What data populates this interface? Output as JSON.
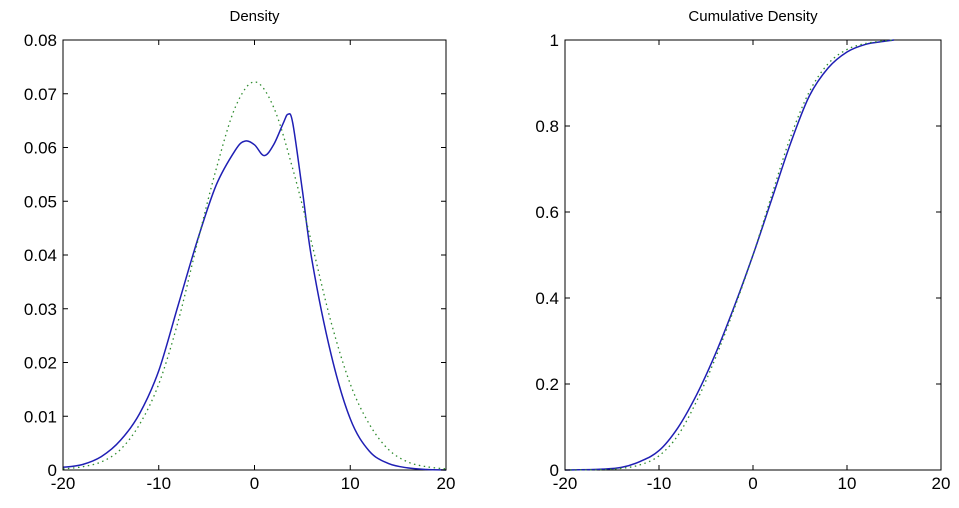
{
  "chart_data": [
    {
      "type": "line",
      "title": "Density",
      "xlabel": "",
      "ylabel": "",
      "xlim": [
        -20,
        20
      ],
      "ylim": [
        0,
        0.08
      ],
      "xticks": [
        "-20",
        "-10",
        "0",
        "10",
        "20"
      ],
      "yticks": [
        "0",
        "0.01",
        "0.02",
        "0.03",
        "0.04",
        "0.05",
        "0.06",
        "0.07",
        "0.08"
      ],
      "grid": false,
      "series": [
        {
          "style": "solid",
          "color": "#1f1fb4",
          "x": [
            -20,
            -18,
            -16,
            -14,
            -12,
            -10,
            -8,
            -6,
            -4,
            -2,
            -1,
            0,
            1,
            2,
            3,
            3.5,
            4,
            5,
            6,
            8,
            10,
            12,
            14,
            16,
            18,
            20
          ],
          "y": [
            0.0005,
            0.001,
            0.0025,
            0.0055,
            0.0105,
            0.0185,
            0.0305,
            0.0425,
            0.053,
            0.0595,
            0.0612,
            0.0605,
            0.0585,
            0.0605,
            0.0645,
            0.0662,
            0.0645,
            0.052,
            0.039,
            0.0215,
            0.0095,
            0.0035,
            0.0012,
            0.0004,
            0.0001,
            0.0
          ]
        },
        {
          "style": "dotted",
          "color": "#2e8b2e",
          "x": [
            -20,
            -18,
            -16,
            -14,
            -12,
            -10,
            -8,
            -6,
            -4,
            -2,
            0,
            2,
            4,
            6,
            8,
            10,
            12,
            14,
            16,
            18,
            20
          ],
          "y": [
            0.0002,
            0.0006,
            0.0015,
            0.0038,
            0.0085,
            0.016,
            0.0275,
            0.042,
            0.056,
            0.0675,
            0.0722,
            0.0675,
            0.056,
            0.042,
            0.0275,
            0.016,
            0.0085,
            0.0038,
            0.0015,
            0.0006,
            0.0002
          ]
        }
      ]
    },
    {
      "type": "line",
      "title": "Cumulative Density",
      "xlabel": "",
      "ylabel": "",
      "xlim": [
        -20,
        20
      ],
      "ylim": [
        0,
        1
      ],
      "xticks": [
        "-20",
        "-10",
        "0",
        "10",
        "20"
      ],
      "yticks": [
        "0",
        "0.2",
        "0.4",
        "0.6",
        "0.8",
        "1"
      ],
      "grid": false,
      "series": [
        {
          "style": "solid",
          "color": "#1f1fb4",
          "x": [
            -20,
            -16,
            -14,
            -12,
            -10,
            -8,
            -6,
            -4,
            -2,
            0,
            2,
            4,
            6,
            8,
            10,
            12,
            14,
            15
          ],
          "y": [
            0.0,
            0.002,
            0.006,
            0.02,
            0.045,
            0.098,
            0.175,
            0.27,
            0.38,
            0.5,
            0.63,
            0.76,
            0.87,
            0.935,
            0.972,
            0.99,
            0.997,
            1.0
          ]
        },
        {
          "style": "dotted",
          "color": "#2e8b2e",
          "x": [
            -20,
            -16,
            -14,
            -12,
            -10,
            -8,
            -6,
            -4,
            -2,
            0,
            2,
            4,
            6,
            8,
            10,
            12,
            14,
            15
          ],
          "y": [
            0.0,
            0.001,
            0.004,
            0.012,
            0.033,
            0.08,
            0.16,
            0.26,
            0.375,
            0.5,
            0.64,
            0.775,
            0.88,
            0.945,
            0.978,
            0.992,
            0.998,
            1.0
          ]
        }
      ]
    }
  ]
}
